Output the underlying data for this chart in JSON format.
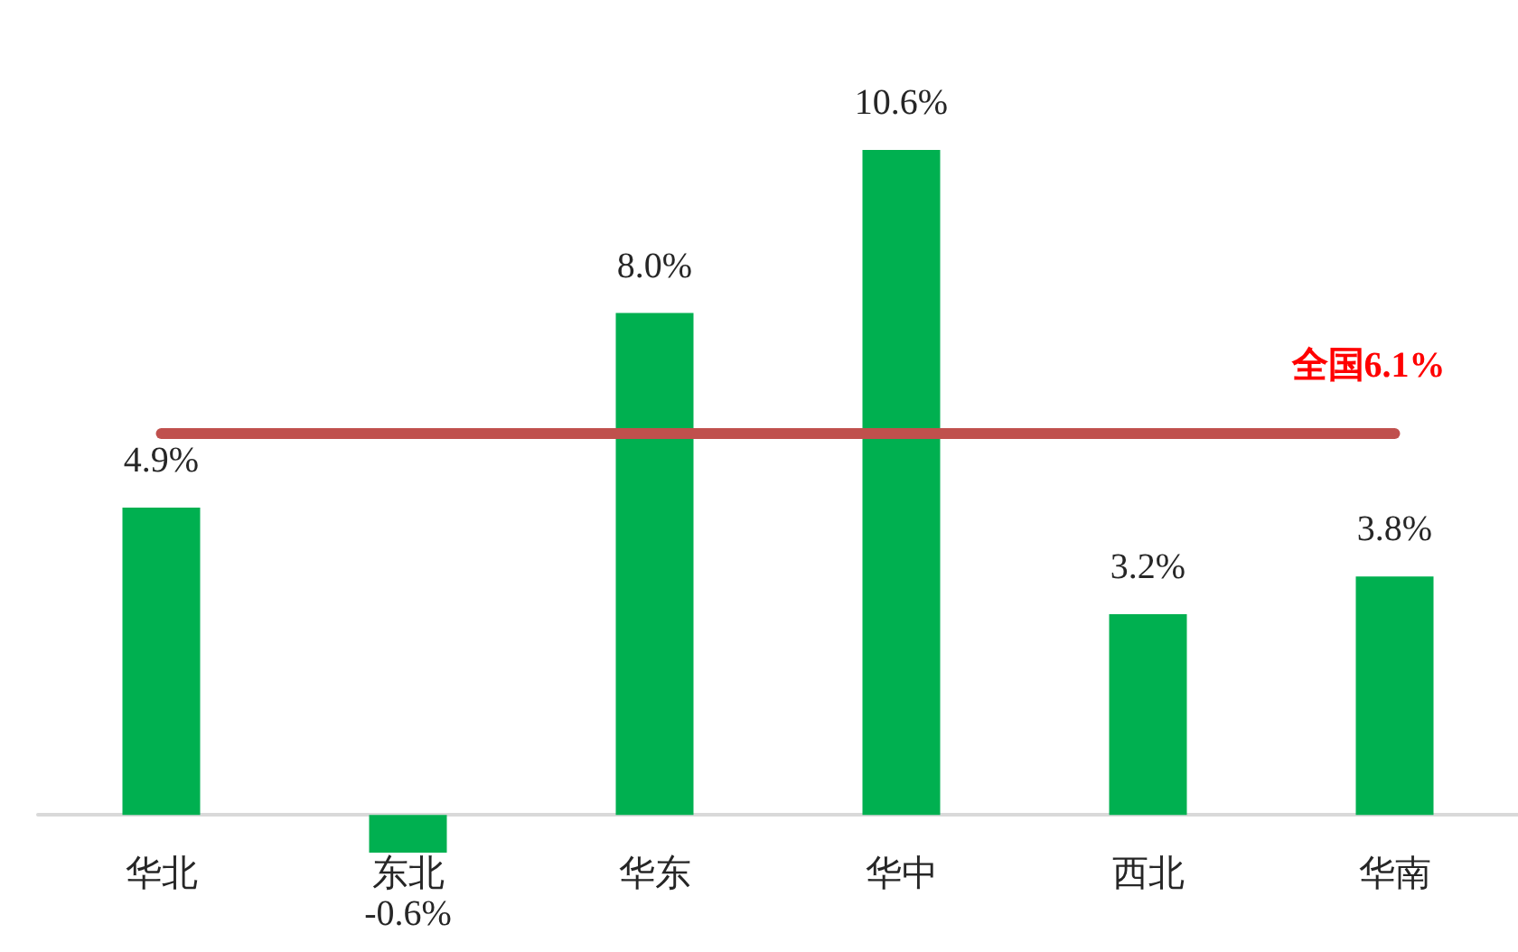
{
  "chart_data": {
    "type": "bar",
    "categories": [
      "华北",
      "东北",
      "华东",
      "华中",
      "西北",
      "华南"
    ],
    "values": [
      4.9,
      -0.6,
      8.0,
      10.6,
      3.2,
      3.8
    ],
    "value_labels": [
      "4.9%",
      "-0.6%",
      "8.0%",
      "10.6%",
      "3.2%",
      "3.8%"
    ],
    "color": "#00b050",
    "ref_lines": [
      {
        "axis": "y",
        "value": 6.1,
        "label": "全国6.1%",
        "color": "#c0504d",
        "line_style": "solid"
      }
    ]
  }
}
